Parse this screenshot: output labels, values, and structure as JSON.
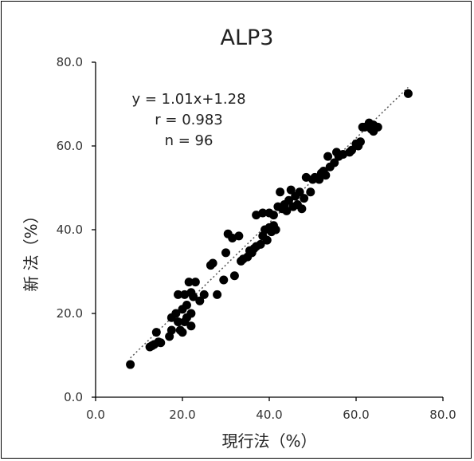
{
  "chart_data": {
    "type": "scatter",
    "title": "ALP3",
    "xlabel": "現行法（%）",
    "ylabel": "新 法（%）",
    "xlim": [
      0,
      80
    ],
    "ylim": [
      0,
      80
    ],
    "x_ticks": [
      "0.0",
      "20.0",
      "40.0",
      "60.0",
      "80.0"
    ],
    "y_ticks": [
      "0.0",
      "20.0",
      "40.0",
      "60.0",
      "80.0"
    ],
    "grid": false,
    "annotations": {
      "equation": "y = 1.01x+1.28",
      "r": "r = 0.983",
      "n": "n = 96"
    },
    "trendline": {
      "slope": 1.01,
      "intercept": 1.28,
      "x_range": [
        8,
        72
      ]
    },
    "colors": {
      "points": "#000000",
      "trendline": "#555555"
    },
    "points": [
      [
        8,
        7.8
      ],
      [
        12.5,
        12
      ],
      [
        13,
        12.3
      ],
      [
        13.5,
        12.6
      ],
      [
        14,
        15.5
      ],
      [
        14.5,
        13.2
      ],
      [
        15,
        13
      ],
      [
        17,
        14.5
      ],
      [
        17.5,
        16
      ],
      [
        17.5,
        19
      ],
      [
        18.5,
        20
      ],
      [
        19,
        24.5
      ],
      [
        19,
        18
      ],
      [
        19.5,
        16
      ],
      [
        20,
        15.5
      ],
      [
        20,
        21
      ],
      [
        20.5,
        24.5
      ],
      [
        20.5,
        18
      ],
      [
        21,
        22
      ],
      [
        21,
        19
      ],
      [
        21.5,
        27.5
      ],
      [
        22,
        17
      ],
      [
        22,
        20
      ],
      [
        22,
        25
      ],
      [
        22.5,
        24
      ],
      [
        23,
        27.5
      ],
      [
        24,
        23
      ],
      [
        25,
        24.5
      ],
      [
        26.5,
        31.5
      ],
      [
        27,
        32
      ],
      [
        28,
        24.5
      ],
      [
        29.5,
        28
      ],
      [
        30,
        34.5
      ],
      [
        30.5,
        39
      ],
      [
        31.5,
        38
      ],
      [
        32,
        29
      ],
      [
        33,
        38.5
      ],
      [
        33.5,
        32.5
      ],
      [
        34,
        33
      ],
      [
        35,
        33.5
      ],
      [
        35.5,
        35
      ],
      [
        36,
        34.5
      ],
      [
        36.5,
        35.5
      ],
      [
        37,
        43.5
      ],
      [
        37,
        36
      ],
      [
        38,
        36.5
      ],
      [
        38.5,
        44
      ],
      [
        38.5,
        38.5
      ],
      [
        39,
        40
      ],
      [
        39.5,
        37.5
      ],
      [
        40,
        44
      ],
      [
        40,
        40.5
      ],
      [
        40.5,
        39.5
      ],
      [
        41,
        43.5
      ],
      [
        41,
        41
      ],
      [
        41.5,
        40
      ],
      [
        42,
        45.5
      ],
      [
        42.5,
        49
      ],
      [
        43,
        45
      ],
      [
        43.5,
        46
      ],
      [
        44,
        44.5
      ],
      [
        44.5,
        47
      ],
      [
        45,
        49.5
      ],
      [
        45.5,
        45.5
      ],
      [
        46,
        48
      ],
      [
        46.5,
        46
      ],
      [
        47,
        49
      ],
      [
        47.5,
        45
      ],
      [
        48,
        47.5
      ],
      [
        48.5,
        52.5
      ],
      [
        49.5,
        49
      ],
      [
        50,
        52
      ],
      [
        50.5,
        52.5
      ],
      [
        51.5,
        52
      ],
      [
        52,
        53.5
      ],
      [
        52.5,
        54
      ],
      [
        53,
        53
      ],
      [
        53.5,
        57.5
      ],
      [
        54,
        55
      ],
      [
        55,
        56
      ],
      [
        55.5,
        58.5
      ],
      [
        56,
        57.5
      ],
      [
        57,
        58
      ],
      [
        58.5,
        58.5
      ],
      [
        59,
        59
      ],
      [
        60,
        60.5
      ],
      [
        60.5,
        60
      ],
      [
        61,
        61
      ],
      [
        61.5,
        64.5
      ],
      [
        62,
        64.5
      ],
      [
        63,
        65.5
      ],
      [
        63.5,
        64
      ],
      [
        64,
        65
      ],
      [
        64,
        63.5
      ],
      [
        65,
        64.5
      ],
      [
        72,
        72.5
      ]
    ]
  }
}
